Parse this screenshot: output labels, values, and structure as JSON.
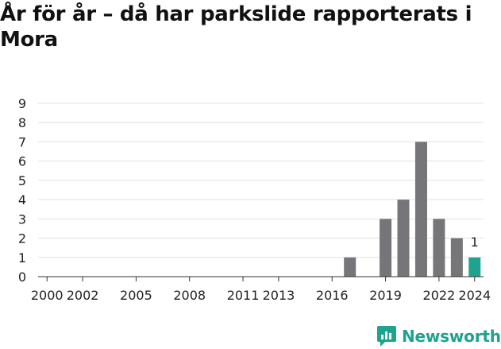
{
  "title": "År för år – då har parkslide rapporterats i Mora",
  "brand": {
    "name": "Newsworthy"
  },
  "colors": {
    "bar": "#76767a",
    "highlight": "#1fa38f",
    "grid": "#e2e2e2",
    "axis": "#333333",
    "text": "#222222"
  },
  "chart_data": {
    "type": "bar",
    "title": "År för år – då har parkslide rapporterats i Mora",
    "xlabel": "",
    "ylabel": "",
    "categories": [
      "2000",
      "2001",
      "2002",
      "2003",
      "2004",
      "2005",
      "2006",
      "2007",
      "2008",
      "2009",
      "2010",
      "2011",
      "2012",
      "2013",
      "2014",
      "2015",
      "2016",
      "2017",
      "2018",
      "2019",
      "2020",
      "2021",
      "2022",
      "2023",
      "2024"
    ],
    "values": [
      0,
      0,
      0,
      0,
      0,
      0,
      0,
      0,
      0,
      0,
      0,
      0,
      0,
      0,
      0,
      0,
      0,
      1,
      0,
      3,
      4,
      7,
      3,
      2,
      1
    ],
    "x_tick_labels": [
      "2000",
      "2002",
      "2005",
      "2008",
      "2011",
      "2013",
      "2016",
      "2019",
      "2022",
      "2024"
    ],
    "highlight": "2024",
    "data_labels": [
      {
        "category": "2024",
        "text": "1"
      }
    ],
    "ylim": [
      0,
      9
    ],
    "yticks": [
      "0",
      "1",
      "2",
      "3",
      "4",
      "5",
      "6",
      "7",
      "8",
      "9"
    ],
    "grid": true,
    "legend": "none"
  }
}
